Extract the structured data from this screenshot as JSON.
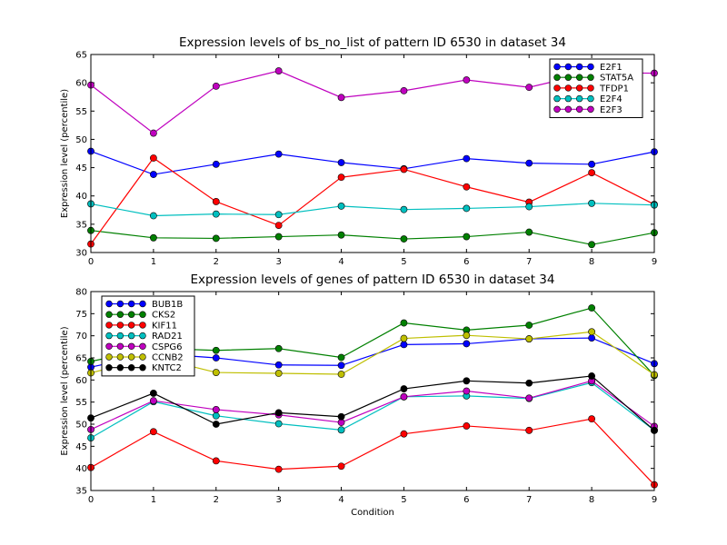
{
  "chart_data": [
    {
      "type": "line",
      "title": "Expression levels of bs_no_list of pattern ID 6530 in dataset 34",
      "xlabel": "",
      "ylabel": "Expression level (percentile)",
      "x": [
        0,
        1,
        2,
        3,
        4,
        5,
        6,
        7,
        8,
        9
      ],
      "xlim": [
        0,
        9
      ],
      "ylim": [
        30,
        65
      ],
      "xticks": [
        0,
        1,
        2,
        3,
        4,
        5,
        6,
        7,
        8,
        9
      ],
      "yticks": [
        30,
        35,
        40,
        45,
        50,
        55,
        60,
        65
      ],
      "grid": false,
      "legend": "top-right",
      "series": [
        {
          "name": "E2F1",
          "color": "#0000ff",
          "values": [
            47.9,
            43.8,
            45.6,
            47.4,
            45.9,
            44.8,
            46.6,
            45.8,
            45.6,
            47.8
          ]
        },
        {
          "name": "STAT5A",
          "color": "#008000",
          "values": [
            33.9,
            32.6,
            32.5,
            32.8,
            33.1,
            32.4,
            32.8,
            33.6,
            31.4,
            33.5
          ]
        },
        {
          "name": "TFDP1",
          "color": "#ff0000",
          "values": [
            31.5,
            46.7,
            39.0,
            34.8,
            43.3,
            44.7,
            41.6,
            38.9,
            44.1,
            38.5
          ]
        },
        {
          "name": "E2F4",
          "color": "#00bfbf",
          "values": [
            38.6,
            36.5,
            36.8,
            36.7,
            38.2,
            37.6,
            37.8,
            38.1,
            38.7,
            38.4
          ]
        },
        {
          "name": "E2F3",
          "color": "#bf00bf",
          "values": [
            59.6,
            51.1,
            59.4,
            62.1,
            57.4,
            58.6,
            60.5,
            59.2,
            61.8,
            61.7
          ]
        }
      ]
    },
    {
      "type": "line",
      "title": "Expression levels of genes of pattern ID 6530 in dataset 34",
      "xlabel": "Condition",
      "ylabel": "Expression level (percentile)",
      "x": [
        0,
        1,
        2,
        3,
        4,
        5,
        6,
        7,
        8,
        9
      ],
      "xlim": [
        0,
        9
      ],
      "ylim": [
        35,
        80
      ],
      "xticks": [
        0,
        1,
        2,
        3,
        4,
        5,
        6,
        7,
        8,
        9
      ],
      "yticks": [
        35,
        40,
        45,
        50,
        55,
        60,
        65,
        70,
        75,
        80
      ],
      "grid": false,
      "legend": "top-left",
      "series": [
        {
          "name": "BUB1B",
          "color": "#0000ff",
          "values": [
            62.9,
            66.0,
            65.0,
            63.4,
            63.3,
            68.0,
            68.2,
            69.3,
            69.5,
            63.7
          ]
        },
        {
          "name": "CKS2",
          "color": "#008000",
          "values": [
            64.2,
            67.2,
            66.7,
            67.1,
            65.1,
            72.9,
            71.3,
            72.4,
            76.3,
            61.0
          ]
        },
        {
          "name": "KIF11",
          "color": "#ff0000",
          "values": [
            40.2,
            48.3,
            41.7,
            39.8,
            40.5,
            47.8,
            49.6,
            48.6,
            51.2,
            36.3
          ]
        },
        {
          "name": "RAD21",
          "color": "#00bfbf",
          "values": [
            46.9,
            55.1,
            51.9,
            50.1,
            48.7,
            56.2,
            56.4,
            55.8,
            59.4,
            48.6
          ]
        },
        {
          "name": "CSPG6",
          "color": "#bf00bf",
          "values": [
            48.8,
            55.3,
            53.3,
            52.1,
            50.4,
            56.2,
            57.5,
            55.9,
            59.8,
            49.5
          ]
        },
        {
          "name": "CCNB2",
          "color": "#bfbf00",
          "values": [
            61.6,
            65.2,
            61.7,
            61.5,
            61.3,
            69.4,
            70.1,
            69.3,
            70.9,
            61.2
          ]
        },
        {
          "name": "KNTC2",
          "color": "#000000",
          "values": [
            51.4,
            57.0,
            50.0,
            52.6,
            51.7,
            58.0,
            59.8,
            59.3,
            60.9,
            48.6
          ]
        }
      ]
    }
  ]
}
